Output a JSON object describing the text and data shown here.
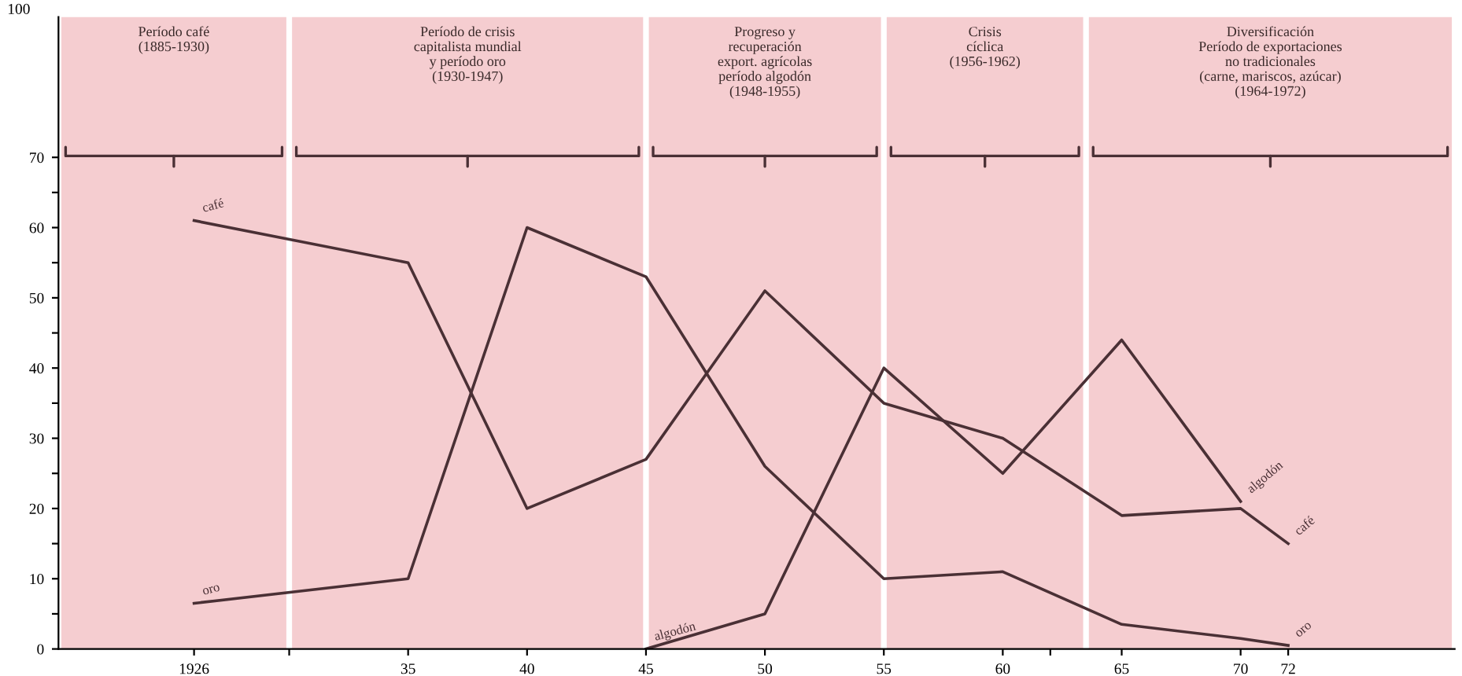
{
  "chart_data": {
    "type": "line",
    "x": [
      1926,
      1935,
      1940,
      1945,
      1950,
      1955,
      1960,
      1965,
      1970,
      1972
    ],
    "series": [
      {
        "name": "café",
        "color": "#4a3035",
        "values": [
          61,
          55,
          20,
          27,
          51,
          35,
          30,
          19,
          20,
          15
        ]
      },
      {
        "name": "oro",
        "color": "#4a3035",
        "values": [
          6.5,
          10,
          60,
          53,
          26,
          10,
          11,
          3.5,
          1.5,
          0.5
        ]
      },
      {
        "name": "algodón",
        "color": "#4a3035",
        "x": [
          1945,
          1950,
          1955,
          1960,
          1965,
          1970
        ],
        "values": [
          0,
          5,
          40,
          25,
          44,
          21
        ]
      }
    ],
    "xlim": [
      1920.3,
      1979
    ],
    "xticks": [
      {
        "value": 1926,
        "label": "1926"
      },
      {
        "value": 1930,
        "label": null
      },
      {
        "value": 1935,
        "label": "35"
      },
      {
        "value": 1940,
        "label": "40"
      },
      {
        "value": 1945,
        "label": "45"
      },
      {
        "value": 1950,
        "label": "50"
      },
      {
        "value": 1955,
        "label": "55"
      },
      {
        "value": 1960,
        "label": "60"
      },
      {
        "value": 1962,
        "label": null
      },
      {
        "value": 1965,
        "label": "65"
      },
      {
        "value": 1970,
        "label": "70"
      },
      {
        "value": 1972,
        "label": "72"
      }
    ],
    "ylim": [
      0,
      90
    ],
    "yticks": [
      0,
      {
        "value": 5,
        "label": null
      },
      10,
      {
        "value": 15,
        "label": null
      },
      20,
      {
        "value": 25,
        "label": null
      },
      30,
      {
        "value": 35,
        "label": null
      },
      40,
      {
        "value": 45,
        "label": null
      },
      50,
      {
        "value": 55,
        "label": null
      },
      60,
      {
        "value": 65,
        "label": null
      },
      70
    ],
    "bands": [
      {
        "axis": "x",
        "from": 1920.3,
        "to": 1930,
        "label": "Período café\n(1885-1930)",
        "color": "#f5cdd0"
      },
      {
        "axis": "x",
        "from": 1930,
        "to": 1945,
        "label": "Período de crisis\ncapitalista mundial\ny período oro\n(1930-1947)",
        "color": "#f5cdd0"
      },
      {
        "axis": "x",
        "from": 1945,
        "to": 1955,
        "label": "Progreso y\nrecuperación\nexport. agrícolas\nperíodo algodón\n(1948-1955)",
        "color": "#f5cdd0"
      },
      {
        "axis": "x",
        "from": 1955,
        "to": 1963.5,
        "label": "Crisis\ncíclica\n(1956-1962)",
        "color": "#f5cdd0"
      },
      {
        "axis": "x",
        "from": 1963.5,
        "to": 1979,
        "label": "Diversificación\nPeríodo de exportaciones\nno tradicionales\n(carne, mariscos, azúcar)\n(1964-1972)",
        "color": "#f5cdd0"
      }
    ],
    "annotations": [
      "100"
    ],
    "grid": false,
    "legend": false,
    "marker": "none",
    "line_style": "solid"
  }
}
